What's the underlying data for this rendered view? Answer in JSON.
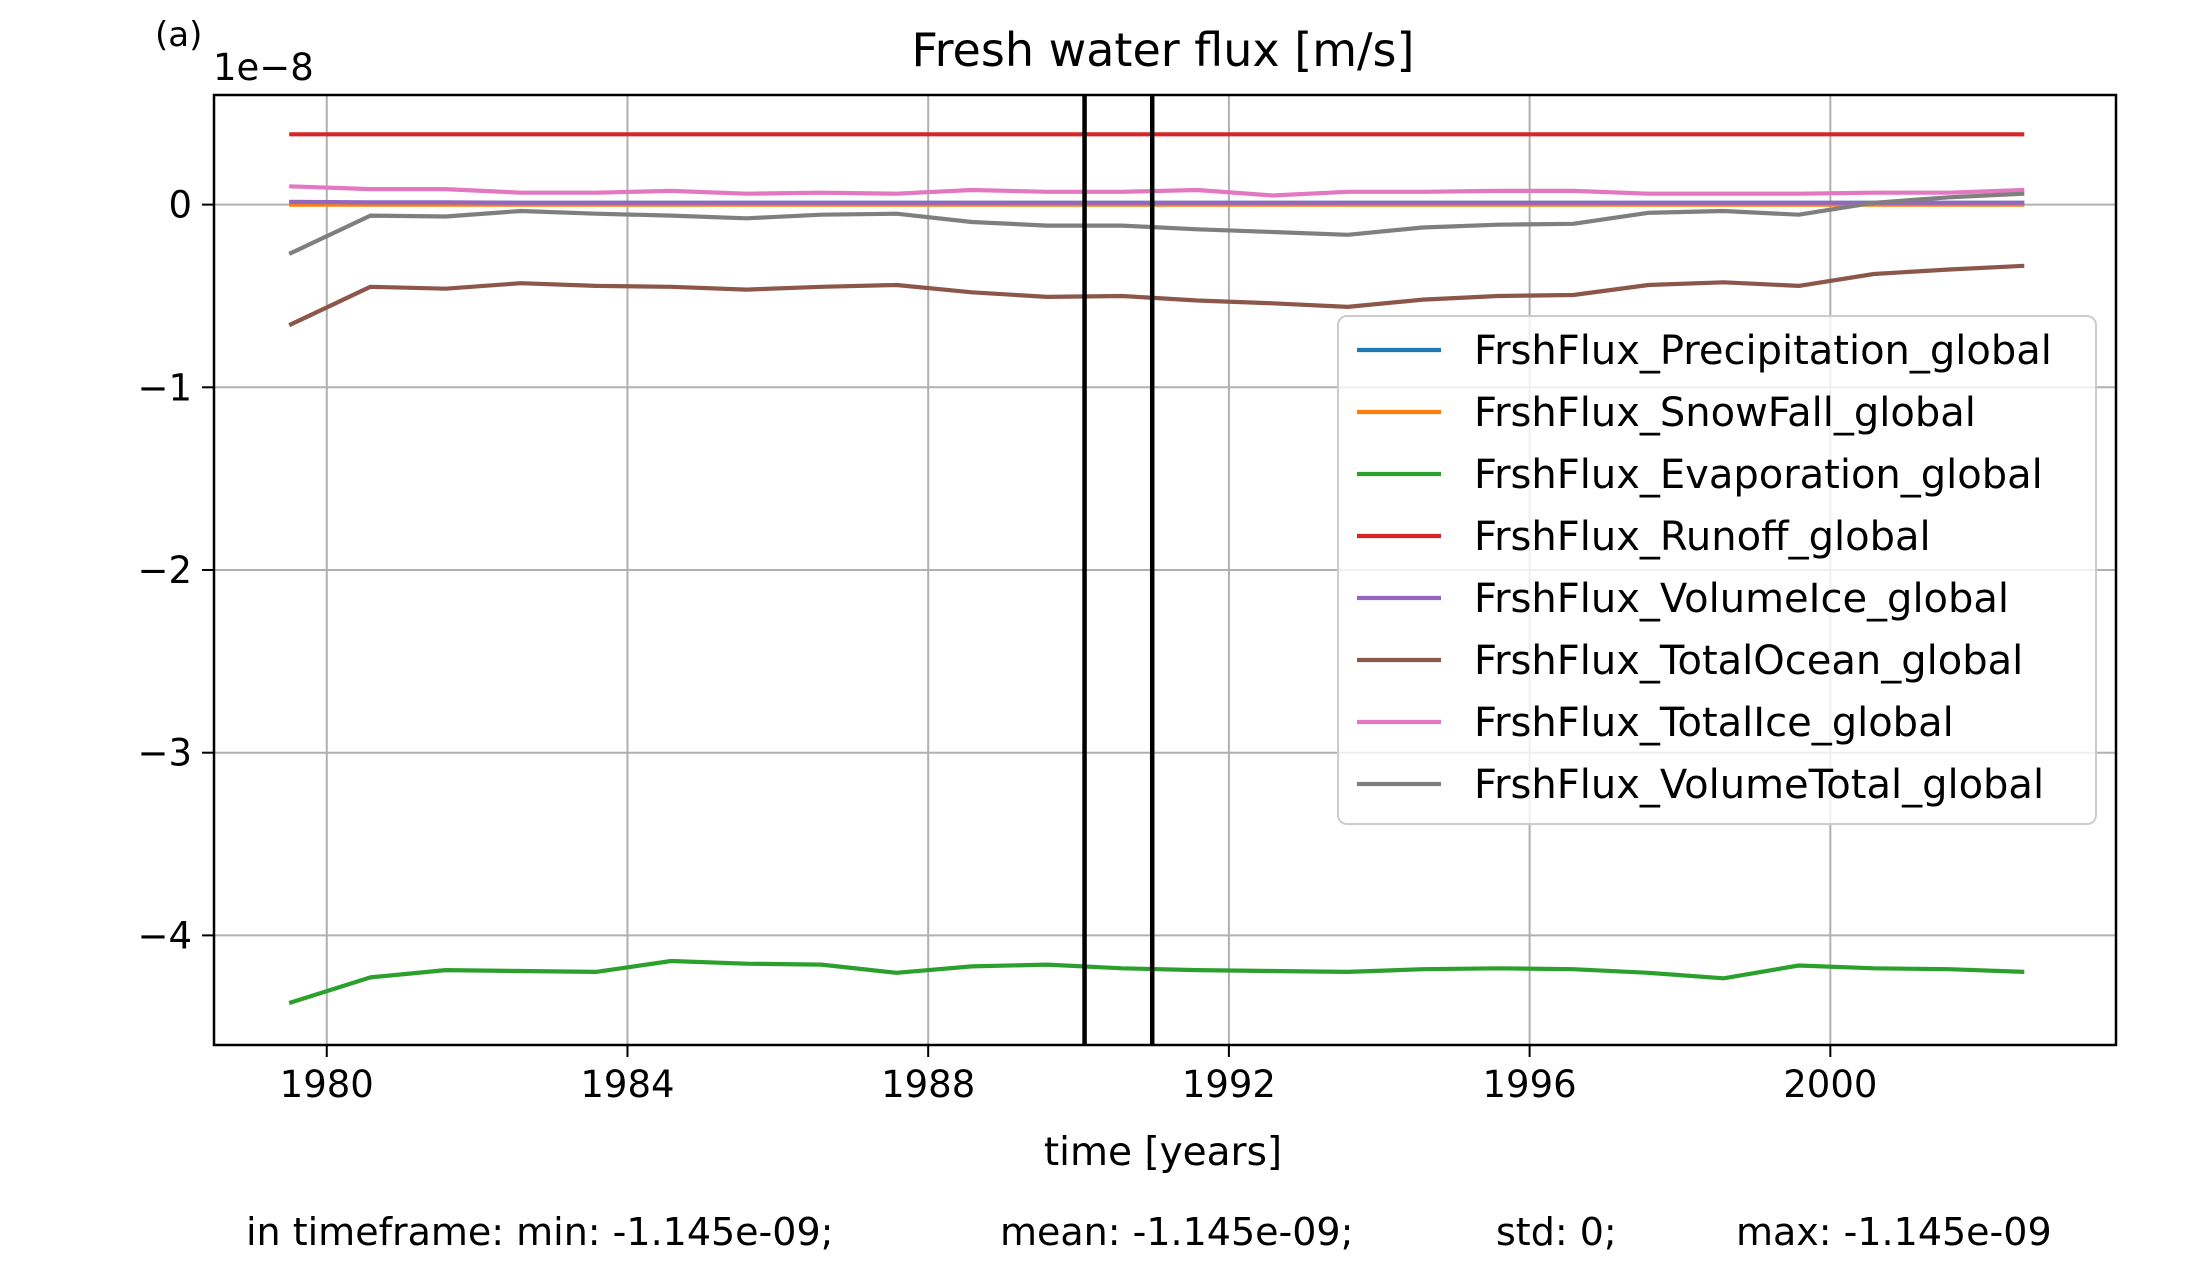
{
  "panel_label": "(a)",
  "chart_data": {
    "type": "line",
    "title": "Fresh water flux [m/s]",
    "xlabel": "time [years]",
    "ylabel": "",
    "offset_text": "1e−8",
    "xlim": [
      1978.5,
      2003.8
    ],
    "ylim": [
      -4.6,
      0.6
    ],
    "xticks": [
      1980,
      1984,
      1988,
      1992,
      1996,
      2000
    ],
    "xtick_labels": [
      "1980",
      "1984",
      "1988",
      "1992",
      "1996",
      "2000"
    ],
    "yticks": [
      0,
      -1,
      -2,
      -3,
      -4
    ],
    "ytick_labels": [
      "0",
      "−1",
      "−2",
      "−3",
      "−4"
    ],
    "grid": true,
    "legend_position": "center-right",
    "vlines": [
      1990.08,
      1990.98
    ],
    "x": [
      1979.5,
      1980.58,
      1981.58,
      1982.58,
      1983.58,
      1984.58,
      1985.58,
      1986.58,
      1987.58,
      1988.58,
      1989.58,
      1990.58,
      1991.58,
      1992.58,
      1993.58,
      1994.58,
      1995.58,
      1996.58,
      1997.58,
      1998.58,
      1999.58,
      2000.58,
      2001.58,
      2002.58
    ],
    "series": [
      {
        "name": "FrshFlux_Precipitation_global",
        "color": "#1f77b4",
        "values": [
          0.01,
          0.01,
          0.01,
          0.01,
          0.01,
          0.01,
          0.01,
          0.01,
          0.01,
          0.01,
          0.01,
          0.01,
          0.01,
          0.01,
          0.01,
          0.01,
          0.01,
          0.01,
          0.01,
          0.01,
          0.01,
          0.01,
          0.01,
          0.01
        ]
      },
      {
        "name": "FrshFlux_SnowFall_global",
        "color": "#ff7f0e",
        "values": [
          0,
          0,
          0,
          0,
          0,
          0,
          0,
          0,
          0,
          0,
          0,
          0,
          0,
          0,
          0,
          0,
          0,
          0,
          0,
          0,
          0,
          0,
          0,
          0
        ]
      },
      {
        "name": "FrshFlux_Evaporation_global",
        "color": "#2ca02c",
        "values": [
          -4.37,
          -4.23,
          -4.19,
          -4.195,
          -4.2,
          -4.14,
          -4.155,
          -4.16,
          -4.205,
          -4.17,
          -4.16,
          -4.18,
          -4.19,
          -4.195,
          -4.2,
          -4.185,
          -4.18,
          -4.185,
          -4.205,
          -4.235,
          -4.165,
          -4.18,
          -4.185,
          -4.2
        ]
      },
      {
        "name": "FrshFlux_Runoff_global",
        "color": "#d62728",
        "values": [
          0.385,
          0.385,
          0.385,
          0.385,
          0.385,
          0.385,
          0.385,
          0.385,
          0.385,
          0.385,
          0.385,
          0.385,
          0.385,
          0.385,
          0.385,
          0.385,
          0.385,
          0.385,
          0.385,
          0.385,
          0.385,
          0.385,
          0.385,
          0.385
        ]
      },
      {
        "name": "FrshFlux_VolumeIce_global",
        "color": "#9467bd",
        "values": [
          0.015,
          0.012,
          0.012,
          0.01,
          0.01,
          0.01,
          0.01,
          0.01,
          0.01,
          0.01,
          0.01,
          0.01,
          0.01,
          0.01,
          0.01,
          0.01,
          0.01,
          0.01,
          0.01,
          0.01,
          0.01,
          0.01,
          0.01,
          0.01
        ]
      },
      {
        "name": "FrshFlux_TotalOcean_global",
        "color": "#8c564b",
        "values": [
          -0.66,
          -0.45,
          -0.46,
          -0.43,
          -0.445,
          -0.45,
          -0.465,
          -0.45,
          -0.44,
          -0.48,
          -0.505,
          -0.5,
          -0.525,
          -0.54,
          -0.56,
          -0.52,
          -0.5,
          -0.495,
          -0.44,
          -0.425,
          -0.445,
          -0.38,
          -0.355,
          -0.335
        ]
      },
      {
        "name": "FrshFlux_TotalIce_global",
        "color": "#e377c2",
        "values": [
          0.1,
          0.085,
          0.085,
          0.065,
          0.065,
          0.075,
          0.06,
          0.065,
          0.06,
          0.08,
          0.07,
          0.07,
          0.08,
          0.05,
          0.07,
          0.07,
          0.075,
          0.075,
          0.06,
          0.06,
          0.06,
          0.065,
          0.065,
          0.08
        ]
      },
      {
        "name": "FrshFlux_VolumeTotal_global",
        "color": "#7f7f7f",
        "values": [
          -0.27,
          -0.06,
          -0.065,
          -0.035,
          -0.05,
          -0.06,
          -0.075,
          -0.055,
          -0.05,
          -0.095,
          -0.115,
          -0.115,
          -0.135,
          -0.15,
          -0.165,
          -0.125,
          -0.11,
          -0.105,
          -0.045,
          -0.035,
          -0.055,
          0.01,
          0.04,
          0.06
        ]
      }
    ],
    "stats": {
      "min": "in timeframe: min: -1.145e-09;",
      "mean": "mean: -1.145e-09;",
      "std": "std: 0;",
      "max": "max: -1.145e-09"
    }
  }
}
